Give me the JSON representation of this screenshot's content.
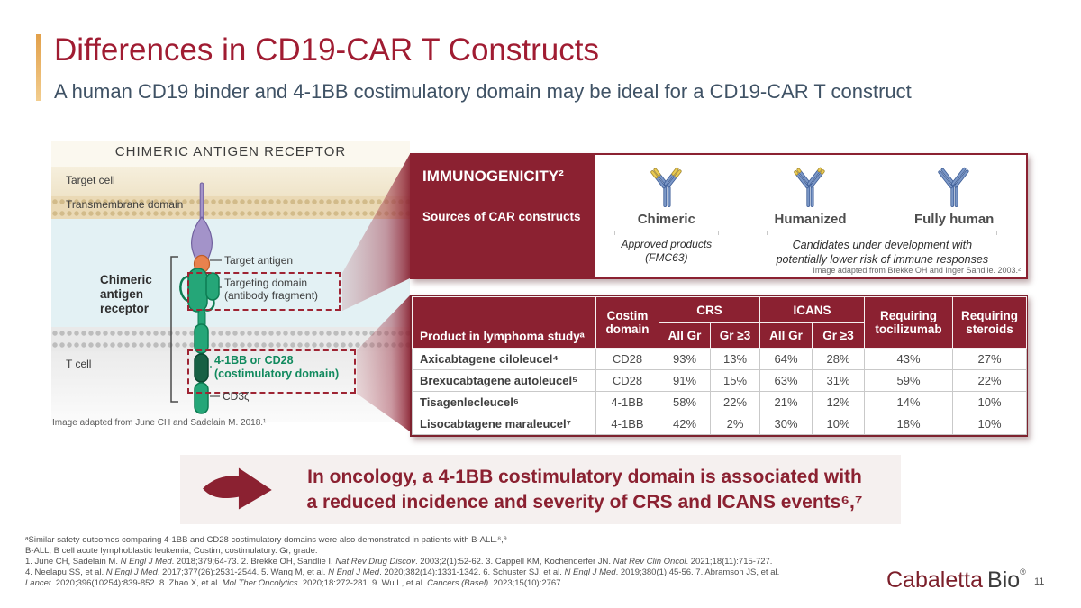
{
  "header": {
    "title": "Differences in CD19-CAR T Constructs",
    "subtitle": "A human CD19 binder and 4-1BB costimulatory domain may be ideal for a CD19-CAR T construct"
  },
  "diagram": {
    "heading": "CHIMERIC ANTIGEN RECEPTOR",
    "target_cell_label": "Target cell",
    "transmembrane_label": "Transmembrane domain",
    "t_cell_label": "T cell",
    "receptor_label": "Chimeric antigen receptor",
    "target_antigen_label": "Target antigen",
    "targeting_domain_line1": "Targeting domain",
    "targeting_domain_line2": "(antibody fragment)",
    "costim_line1": "4-1BB or CD28",
    "costim_line2": "(costimulatory domain)",
    "cd3z_label": "CD3ζ",
    "credit": "Image adapted from June CH and Sadelain M. 2018.¹"
  },
  "immunogenicity": {
    "title": "IMMUNOGENICITY²",
    "subtitle": "Sources of CAR constructs",
    "types": [
      {
        "name": "Chimeric",
        "icon": "antibody-icon-chimeric"
      },
      {
        "name": "Humanized",
        "icon": "antibody-icon-humanized"
      },
      {
        "name": "Fully human",
        "icon": "antibody-icon-fully-human"
      }
    ],
    "approved_caption_line1": "Approved products",
    "approved_caption_line2": "(FMC63)",
    "development_caption_line1": "Candidates under development with",
    "development_caption_line2": "potentially lower risk of immune responses",
    "credit": "Image adapted from Brekke OH and Inger Sandlie. 2003.²"
  },
  "table": {
    "header": {
      "product": "Product in lymphoma studyᵃ",
      "costim": "Costim domain",
      "crs": "CRS",
      "icans": "ICANS",
      "all_gr_1": "All Gr",
      "gr3_1": "Gr ≥3",
      "all_gr_2": "All Gr",
      "gr3_2": "Gr ≥3",
      "tocilizumab": "Requiring tocilizumab",
      "steroids": "Requiring steroids"
    },
    "rows": [
      {
        "product": "Axicabtagene ciloleucel⁴",
        "costim": "CD28",
        "crs_all": "93%",
        "crs_gr3": "13%",
        "icans_all": "64%",
        "icans_gr3": "28%",
        "tocilizumab": "43%",
        "steroids": "27%"
      },
      {
        "product": "Brexucabtagene autoleucel⁵",
        "costim": "CD28",
        "crs_all": "91%",
        "crs_gr3": "15%",
        "icans_all": "63%",
        "icans_gr3": "31%",
        "tocilizumab": "59%",
        "steroids": "22%"
      },
      {
        "product": "Tisagenlecleucel⁶",
        "costim": "4-1BB",
        "crs_all": "58%",
        "crs_gr3": "22%",
        "icans_all": "21%",
        "icans_gr3": "12%",
        "tocilizumab": "14%",
        "steroids": "10%"
      },
      {
        "product": "Lisocabtagene maraleucel⁷",
        "costim": "4-1BB",
        "crs_all": "42%",
        "crs_gr3": "2%",
        "icans_all": "30%",
        "icans_gr3": "10%",
        "tocilizumab": "18%",
        "steroids": "10%"
      }
    ]
  },
  "callout": {
    "line1": "In oncology, a 4-1BB costimulatory domain is associated with",
    "line2": "a reduced incidence and severity of CRS and ICANS events⁶,⁷"
  },
  "footnotes": {
    "lines": [
      "ᵃSimilar safety outcomes comparing 4-1BB and CD28 costimulatory domains were also demonstrated in patients with B-ALL.⁸,⁹",
      "B-ALL, B cell acute lymphoblastic leukemia; Costim, costimulatory. Gr, grade.",
      "1. June CH, Sadelain M. *N Engl J Med*. 2018;379;64-73. 2. Brekke OH, Sandlie I. *Nat Rev Drug Discov*. 2003;2(1):52-62. 3. Cappell KM, Kochenderfer JN. *Nat Rev Clin Oncol*. 2021;18(11):715-727.",
      "4. Neelapu SS, et al. *N Engl J Med*. 2017;377(26):2531-2544. 5. Wang M, et al. *N Engl J Med*. 2020;382(14):1331-1342. 6. Schuster SJ, et al. *N Engl J Med*. 2019;380(1):45-56. 7. Abramson JS, et al.",
      "*Lancet*. 2020;396(10254):839-852. 8. Zhao X, et al. *Mol Ther Oncolytics*. 2020;18:272-281. 9. Wu L, et al. *Cancers (Basel)*. 2023;15(10):2767."
    ]
  },
  "footer": {
    "logo_part1": "Cabaletta",
    "logo_part2": "Bio",
    "logo_reg": "®",
    "page_number": "11"
  },
  "colors": {
    "accent_red": "#8B2131",
    "title_red": "#A01C32",
    "subtitle_slate": "#3F5265",
    "green": "#0D7C52",
    "gold": "#E2A04A"
  }
}
